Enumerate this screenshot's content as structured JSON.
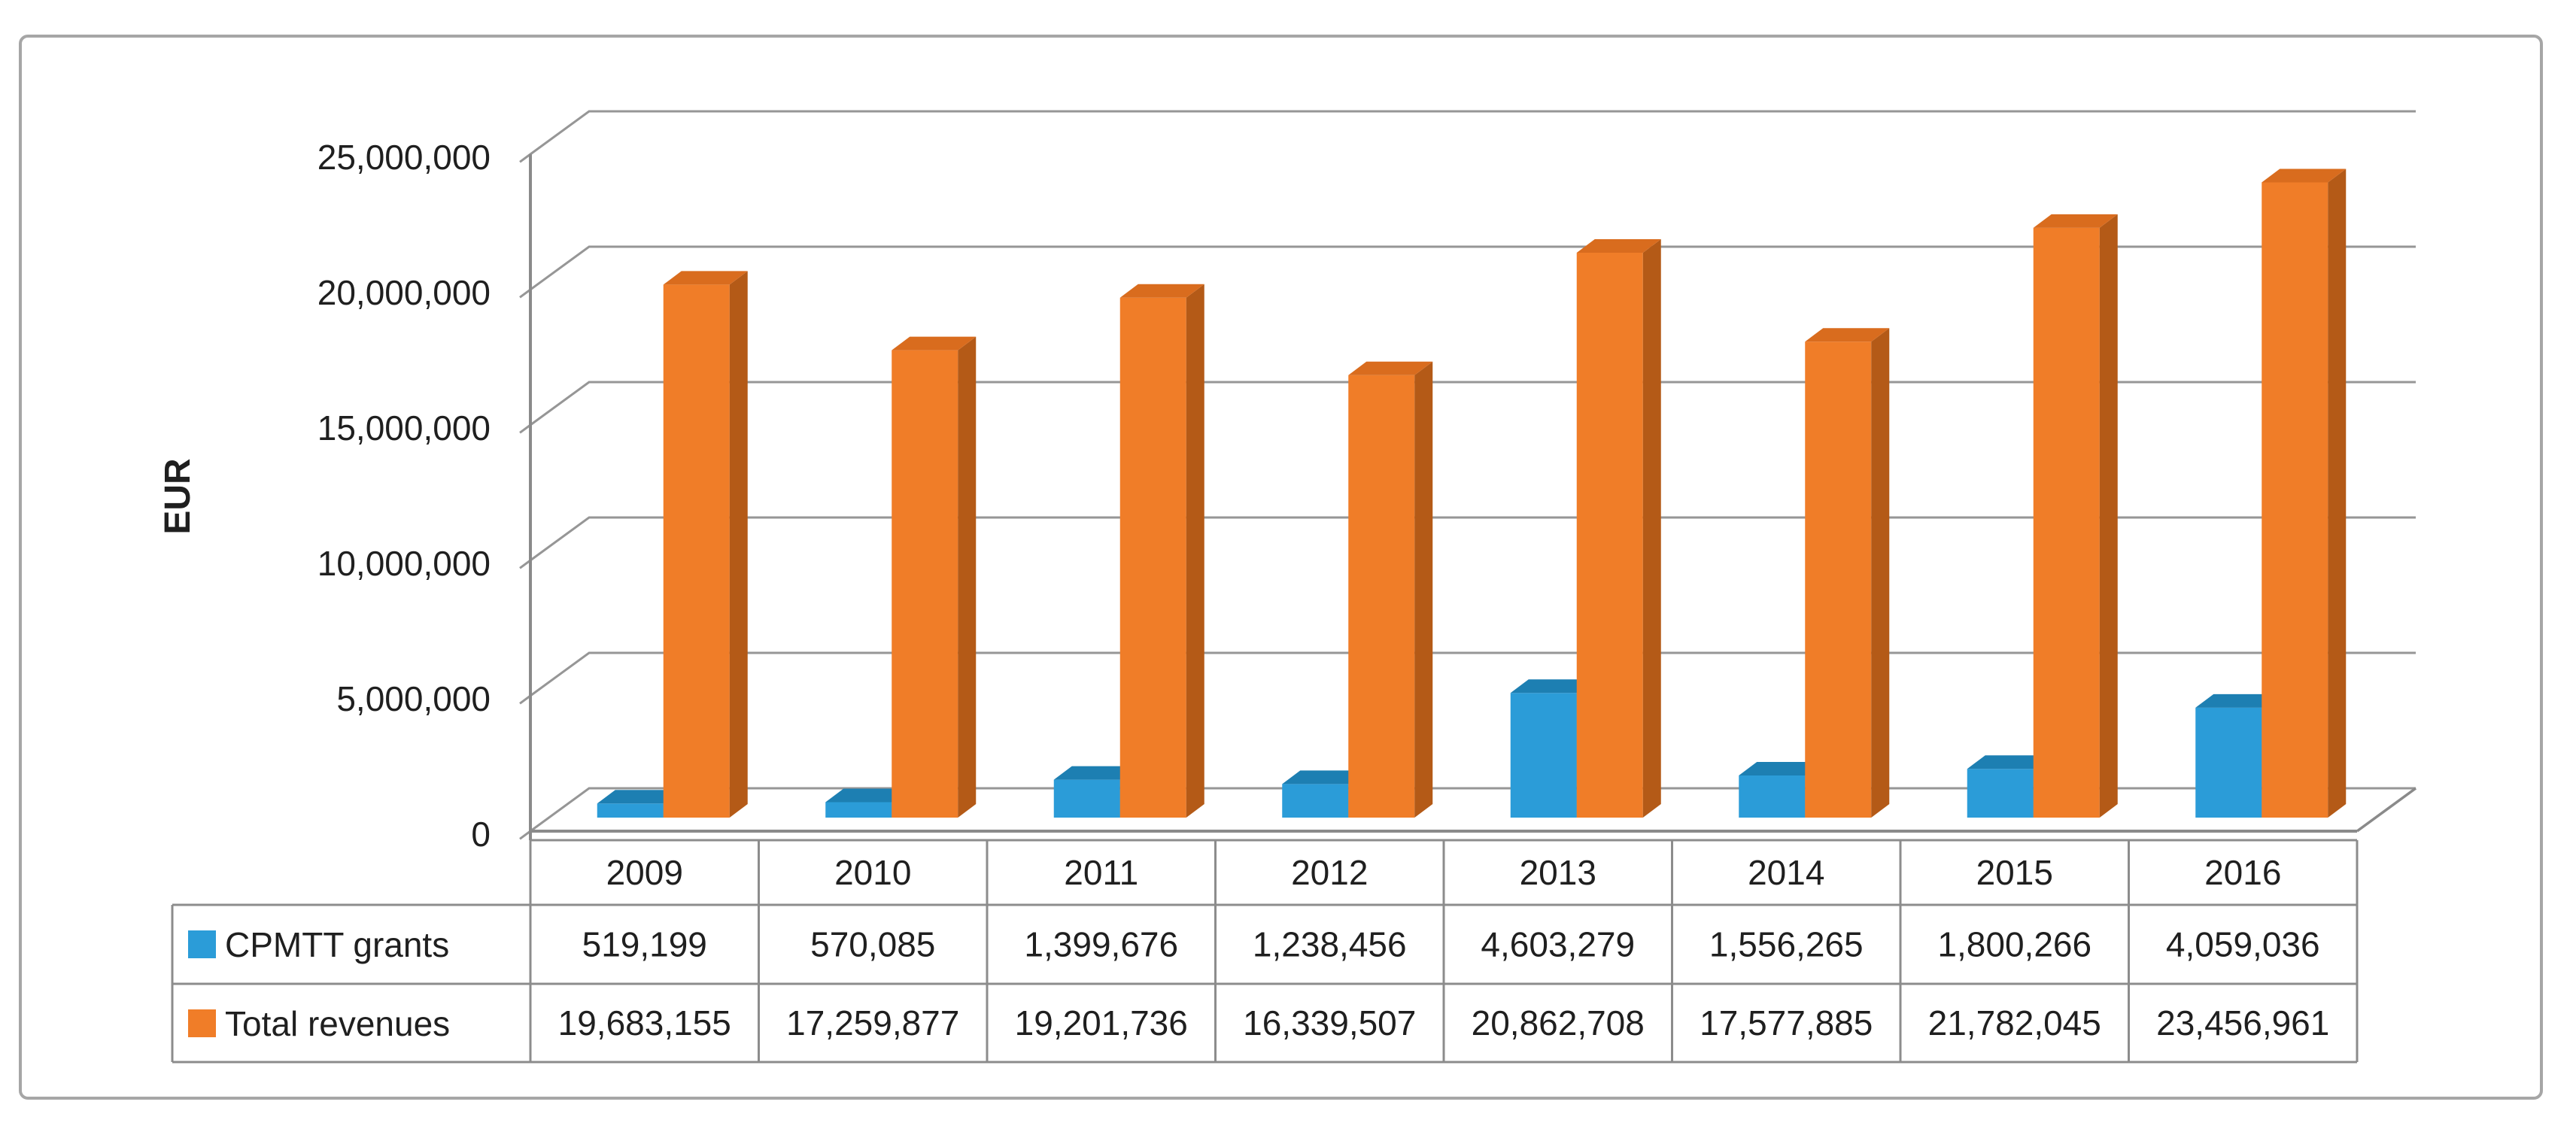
{
  "figure": {
    "background": "#ffffff",
    "border_color": "#a6a6a6",
    "text_color": "#1f1f1f",
    "gridline_color": "#969696",
    "axis_line_color": "#8a8a8a",
    "table_border_color": "#8c8c8c"
  },
  "chart_data": {
    "type": "bar",
    "style": "3d-column",
    "title": "",
    "y_axis_title": "EUR",
    "y_max": 25000000,
    "y_step": 5000000,
    "y_ticks": [
      "25,000,000",
      "20,000,000",
      "15,000,000",
      "10,000,000",
      "5,000,000",
      "0"
    ],
    "gridlines": true,
    "legend_position": "data-table-left",
    "categories": [
      "2009",
      "2010",
      "2011",
      "2012",
      "2013",
      "2014",
      "2015",
      "2016"
    ],
    "series": [
      {
        "name": "CPMTT grants",
        "color": "#2b9cd8",
        "color_top": "#1d7fb2",
        "color_side": "#176a96",
        "values": [
          519199,
          570085,
          1399676,
          1238456,
          4603279,
          1556265,
          1800266,
          4059036
        ],
        "labels": [
          "519,199",
          "570,085",
          "1,399,676",
          "1,238,456",
          "4,603,279",
          "1,556,265",
          "1,800,266",
          "4,059,036"
        ]
      },
      {
        "name": "Total revenues",
        "color": "#f07d28",
        "color_top": "#d96c1e",
        "color_side": "#b45a17",
        "values": [
          19683155,
          17259877,
          19201736,
          16339507,
          20862708,
          17577885,
          21782045,
          23456961
        ],
        "labels": [
          "19,683,155",
          "17,259,877",
          "19,201,736",
          "16,339,507",
          "20,862,708",
          "17,577,885",
          "21,782,045",
          "23,456,961"
        ]
      }
    ]
  }
}
